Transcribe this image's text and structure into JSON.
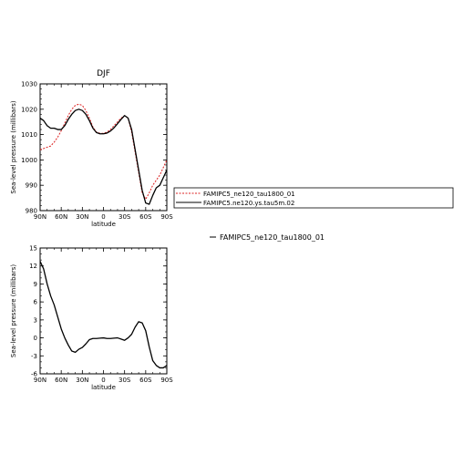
{
  "chart_data": [
    {
      "type": "line",
      "title": "DJF",
      "xlabel": "latitude",
      "ylabel": "Sea-level pressure (millibars)",
      "x_ticks": [
        "90N",
        "60N",
        "30N",
        "0",
        "30S",
        "60S",
        "90S"
      ],
      "y_ticks": [
        "980",
        "990",
        "1000",
        "1010",
        "1020",
        "1030"
      ],
      "xlim": [
        90,
        -90
      ],
      "ylim": [
        980,
        1030
      ],
      "legend_position": "right",
      "grid": false,
      "series": [
        {
          "name": "FAMIPC5_ne120_tau1800_01",
          "color": "#dd2222",
          "dash": true,
          "x": [
            90,
            85,
            80,
            75,
            70,
            65,
            60,
            55,
            50,
            45,
            40,
            35,
            30,
            25,
            20,
            15,
            10,
            5,
            0,
            -5,
            -10,
            -15,
            -20,
            -25,
            -30,
            -35,
            -40,
            -45,
            -50,
            -55,
            -60,
            -65,
            -70,
            -75,
            -80,
            -85,
            -90
          ],
          "values": [
            1004,
            1004.5,
            1005,
            1005.5,
            1007,
            1009,
            1011.5,
            1014.5,
            1017.5,
            1020,
            1021.5,
            1022,
            1021.5,
            1019.5,
            1016.5,
            1013,
            1011,
            1010.5,
            1010.5,
            1011,
            1012,
            1013.5,
            1015,
            1016.5,
            1017.5,
            1016.5,
            1011,
            1003,
            995,
            987,
            984.5,
            987,
            990,
            992,
            994,
            997,
            1000
          ]
        },
        {
          "name": "FAMIPC5.ne120.ys.tau5m.02",
          "color": "#000000",
          "dash": false,
          "x": [
            90,
            85,
            80,
            75,
            70,
            65,
            60,
            55,
            50,
            45,
            40,
            35,
            30,
            25,
            20,
            15,
            10,
            5,
            0,
            -5,
            -10,
            -15,
            -20,
            -25,
            -30,
            -35,
            -40,
            -45,
            -50,
            -55,
            -60,
            -65,
            -70,
            -75,
            -80,
            -85,
            -90
          ],
          "values": [
            1016.5,
            1015.5,
            1013.5,
            1012.5,
            1012.5,
            1012,
            1012,
            1013.5,
            1016,
            1018,
            1019.5,
            1020,
            1019.5,
            1018,
            1015.5,
            1012.5,
            1010.8,
            1010.3,
            1010.3,
            1010.6,
            1011.4,
            1012.7,
            1014.3,
            1016,
            1017.5,
            1016.5,
            1012,
            1004,
            996,
            988,
            983,
            982.5,
            986,
            989,
            990,
            993,
            996
          ]
        }
      ]
    },
    {
      "type": "line",
      "title": "",
      "xlabel": "latitude",
      "ylabel": "Sea-level pressure (millibars)",
      "x_ticks": [
        "90N",
        "60N",
        "30N",
        "0",
        "30S",
        "60S",
        "90S"
      ],
      "y_ticks": [
        "-6",
        "-3",
        "0",
        "3",
        "6",
        "9",
        "12",
        "15"
      ],
      "xlim": [
        90,
        -90
      ],
      "ylim": [
        -6,
        15
      ],
      "legend_position": "right",
      "grid": false,
      "series": [
        {
          "name": "FAMIPC5_ne120_tau1800_01",
          "color": "#000000",
          "dash": false,
          "x": [
            90,
            85,
            80,
            75,
            70,
            65,
            60,
            55,
            50,
            45,
            40,
            35,
            30,
            25,
            20,
            15,
            10,
            5,
            0,
            -5,
            -10,
            -15,
            -20,
            -25,
            -30,
            -35,
            -40,
            -45,
            -50,
            -55,
            -60,
            -65,
            -70,
            -75,
            -80,
            -85,
            -90
          ],
          "values": [
            12.8,
            11.5,
            9,
            7,
            5.5,
            3.5,
            1.5,
            0,
            -1.2,
            -2.2,
            -2.4,
            -1.9,
            -1.6,
            -1.0,
            -0.3,
            -0.1,
            -0.1,
            -0.05,
            0,
            -0.1,
            -0.1,
            -0.05,
            0,
            -0.2,
            -0.4,
            0,
            0.6,
            1.8,
            2.7,
            2.5,
            1.2,
            -1.5,
            -3.8,
            -4.6,
            -5.0,
            -5.0,
            -4.6
          ]
        }
      ]
    }
  ],
  "ui": {
    "legend2_label": "FAMIPC5_ne120_tau1800_01"
  }
}
